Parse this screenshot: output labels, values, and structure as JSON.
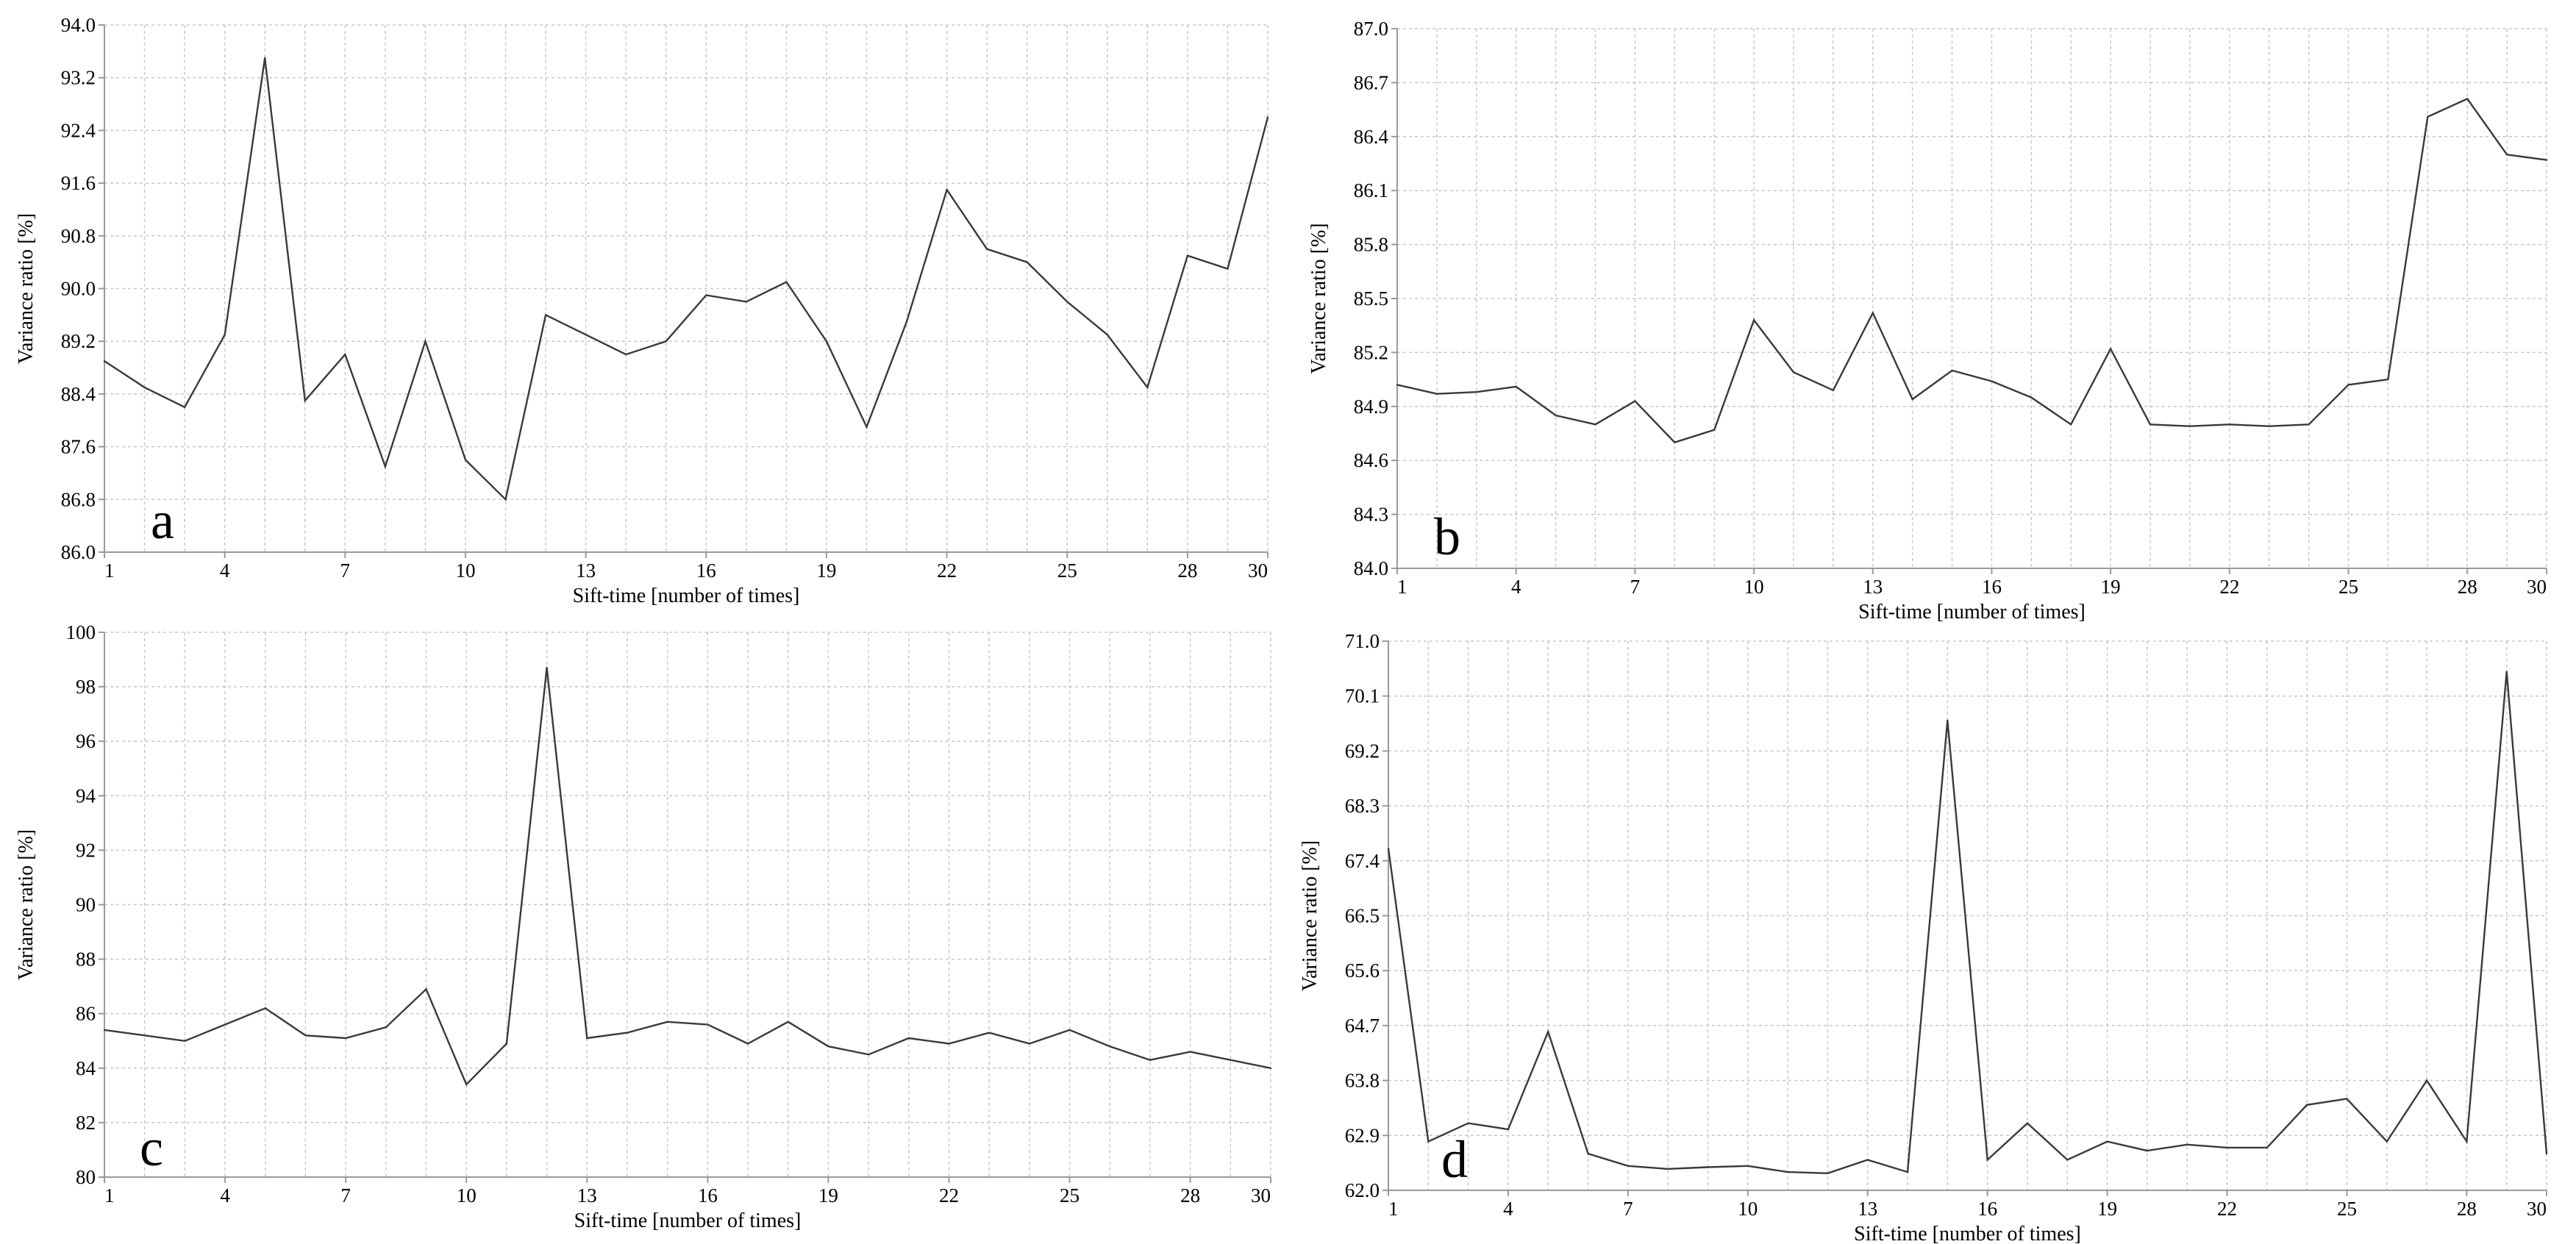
{
  "colors": {
    "line": "#3a3a3a",
    "grid": "#c8c8c8",
    "axis": "#9a9a9a",
    "background": "#ffffff"
  },
  "chart_data": [
    {
      "type": "line",
      "panel_label": "a",
      "xlabel": "Sift-time  [number of times]",
      "ylabel": "Variance ratio [%]",
      "xlim": [
        1,
        30
      ],
      "ylim": [
        86.0,
        94.0
      ],
      "x_ticks": [
        "1",
        "4",
        "7",
        "10",
        "13",
        "16",
        "19",
        "22",
        "25",
        "28",
        "30"
      ],
      "y_ticks": [
        "86.0",
        "86.8",
        "87.6",
        "88.4",
        "89.2",
        "90.0",
        "90.8",
        "91.6",
        "92.4",
        "93.2",
        "94.0"
      ],
      "grid": true,
      "series": [
        {
          "x": [
            1,
            2,
            3,
            4,
            5,
            6,
            7,
            8,
            9,
            10,
            11,
            12,
            13,
            14,
            15,
            16,
            17,
            18,
            19,
            20,
            21,
            22,
            23,
            24,
            25,
            26,
            27,
            28,
            29,
            30
          ],
          "values": [
            88.9,
            88.5,
            88.2,
            89.3,
            93.5,
            88.3,
            89.0,
            87.3,
            89.2,
            87.4,
            86.8,
            89.6,
            89.3,
            89.0,
            89.2,
            89.9,
            89.8,
            90.1,
            89.2,
            87.9,
            89.5,
            91.5,
            90.6,
            90.4,
            89.8,
            89.3,
            88.5,
            90.5,
            90.3,
            92.6
          ]
        }
      ]
    },
    {
      "type": "line",
      "panel_label": "b",
      "xlabel": "Sift-time  [number of times]",
      "ylabel": "Variance ratio [%]",
      "xlim": [
        1,
        30
      ],
      "ylim": [
        84.0,
        87.0
      ],
      "x_ticks": [
        "1",
        "4",
        "7",
        "10",
        "13",
        "16",
        "19",
        "22",
        "25",
        "28",
        "30"
      ],
      "y_ticks": [
        "84.0",
        "84.3",
        "84.6",
        "84.9",
        "85.2",
        "85.5",
        "85.8",
        "86.1",
        "86.4",
        "86.7",
        "87.0"
      ],
      "grid": true,
      "series": [
        {
          "x": [
            1,
            2,
            3,
            4,
            5,
            6,
            7,
            8,
            9,
            10,
            11,
            12,
            13,
            14,
            15,
            16,
            17,
            18,
            19,
            20,
            21,
            22,
            23,
            24,
            25,
            26,
            27,
            28,
            29,
            30
          ],
          "values": [
            85.02,
            84.97,
            84.98,
            85.01,
            84.85,
            84.8,
            84.93,
            84.7,
            84.77,
            85.38,
            85.09,
            84.99,
            85.42,
            84.94,
            85.1,
            85.04,
            84.95,
            84.8,
            85.22,
            84.8,
            84.79,
            84.8,
            84.79,
            84.8,
            85.02,
            85.05,
            86.51,
            86.61,
            86.3,
            86.27
          ]
        }
      ]
    },
    {
      "type": "line",
      "panel_label": "c",
      "xlabel": "Sift-time  [number of times]",
      "ylabel": "Variance ratio [%]",
      "xlim": [
        1,
        30
      ],
      "ylim": [
        80,
        100
      ],
      "x_ticks": [
        "1",
        "4",
        "7",
        "10",
        "13",
        "16",
        "19",
        "22",
        "25",
        "28",
        "30"
      ],
      "y_ticks": [
        "80",
        "82",
        "84",
        "86",
        "88",
        "90",
        "92",
        "94",
        "96",
        "98",
        "100"
      ],
      "grid": true,
      "series": [
        {
          "x": [
            1,
            2,
            3,
            4,
            5,
            6,
            7,
            8,
            9,
            10,
            11,
            12,
            13,
            14,
            15,
            16,
            17,
            18,
            19,
            20,
            21,
            22,
            23,
            24,
            25,
            26,
            27,
            28,
            29,
            30
          ],
          "values": [
            85.4,
            85.2,
            85.0,
            85.6,
            86.2,
            85.2,
            85.1,
            85.5,
            86.9,
            83.4,
            84.9,
            98.7,
            85.1,
            85.3,
            85.7,
            85.6,
            84.9,
            85.7,
            84.8,
            84.5,
            85.1,
            84.9,
            85.3,
            84.9,
            85.4,
            84.8,
            84.3,
            84.6,
            84.3,
            84.0
          ]
        }
      ]
    },
    {
      "type": "line",
      "panel_label": "d",
      "xlabel": "Sift-time  [number of times]",
      "ylabel": "Variance ratio [%]",
      "xlim": [
        1,
        30
      ],
      "ylim": [
        62.0,
        71.0
      ],
      "x_ticks": [
        "1",
        "4",
        "7",
        "10",
        "13",
        "16",
        "19",
        "22",
        "25",
        "28",
        "30"
      ],
      "y_ticks": [
        "62.0",
        "62.9",
        "63.8",
        "64.7",
        "65.6",
        "66.5",
        "67.4",
        "68.3",
        "69.2",
        "70.1",
        "71.0"
      ],
      "grid": true,
      "series": [
        {
          "x": [
            1,
            2,
            3,
            4,
            5,
            6,
            7,
            8,
            9,
            10,
            11,
            12,
            13,
            14,
            15,
            16,
            17,
            18,
            19,
            20,
            21,
            22,
            23,
            24,
            25,
            26,
            27,
            28,
            29,
            30
          ],
          "values": [
            67.6,
            62.8,
            63.1,
            63.0,
            64.6,
            62.6,
            62.4,
            62.35,
            62.38,
            62.4,
            62.3,
            62.28,
            62.5,
            62.3,
            69.7,
            62.5,
            63.1,
            62.5,
            62.8,
            62.65,
            62.75,
            62.7,
            62.7,
            63.4,
            63.5,
            62.8,
            63.8,
            62.8,
            70.5,
            62.6
          ]
        }
      ]
    }
  ]
}
